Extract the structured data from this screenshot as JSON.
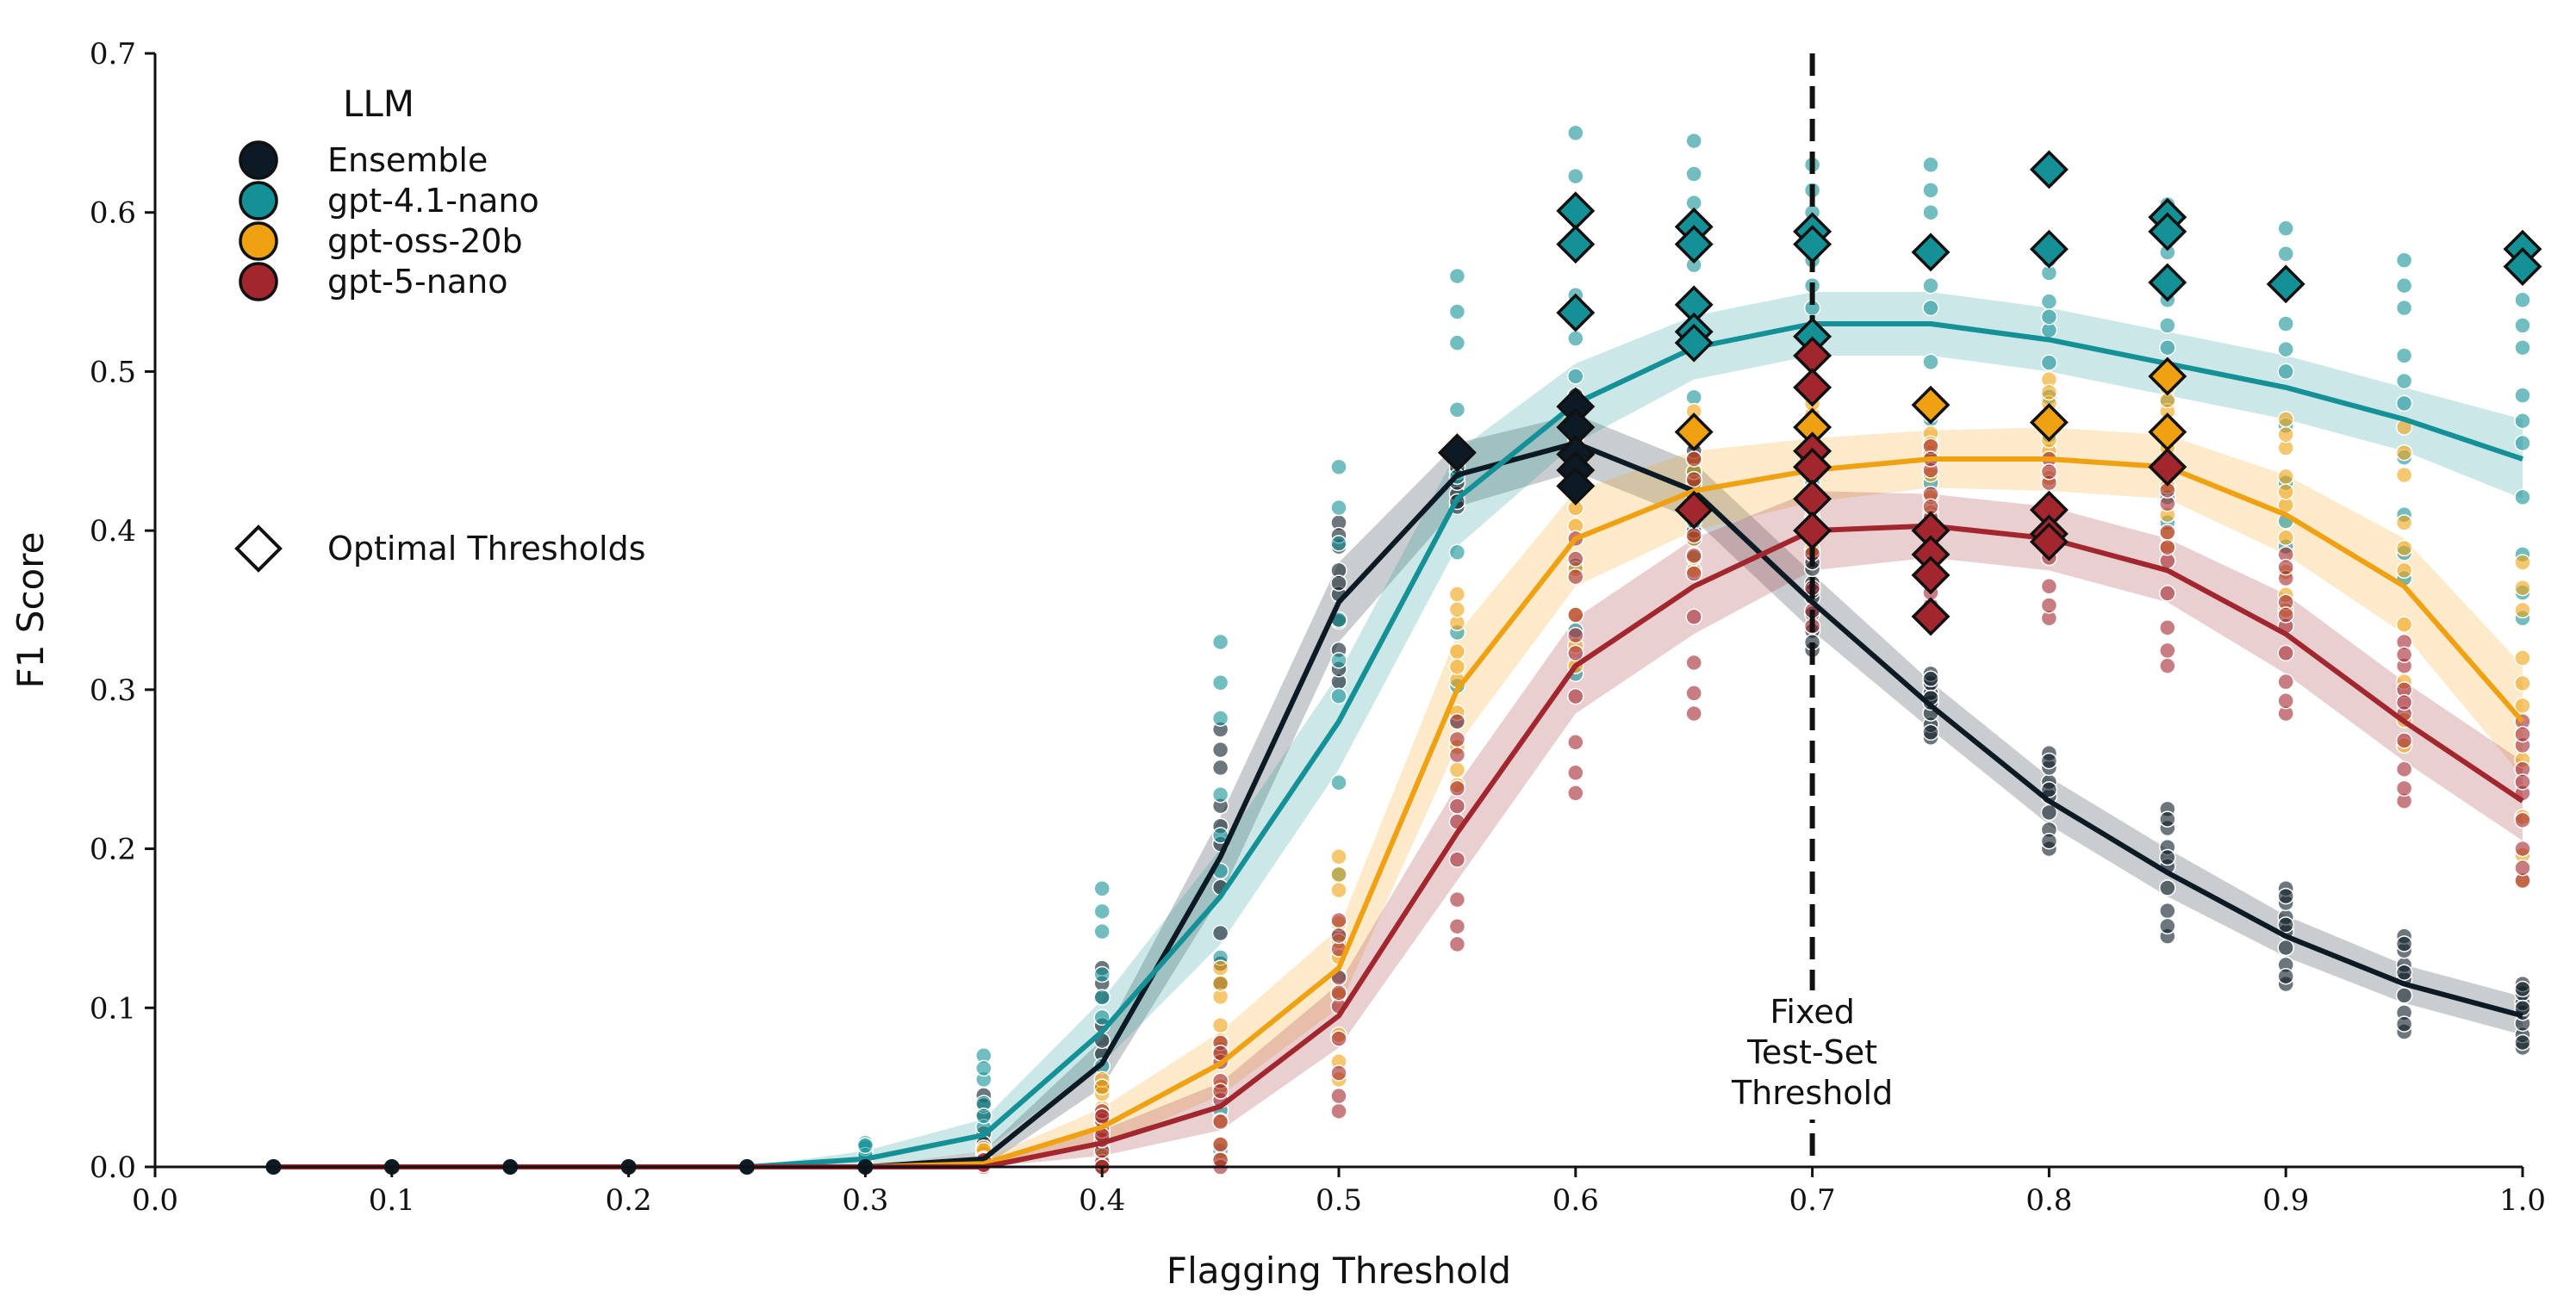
{
  "chart_data": {
    "type": "line",
    "title": "",
    "xlabel": "Flagging Threshold",
    "ylabel": "F1 Score",
    "xlim": [
      0.0,
      1.0
    ],
    "ylim": [
      0.0,
      0.7
    ],
    "xticks": [
      "0.0",
      "0.1",
      "0.2",
      "0.3",
      "0.4",
      "0.5",
      "0.6",
      "0.7",
      "0.8",
      "0.9",
      "1.0"
    ],
    "yticks": [
      "0.0",
      "0.1",
      "0.2",
      "0.3",
      "0.4",
      "0.5",
      "0.6",
      "0.7"
    ],
    "x": [
      0.05,
      0.1,
      0.15,
      0.2,
      0.25,
      0.3,
      0.35,
      0.4,
      0.45,
      0.5,
      0.55,
      0.6,
      0.65,
      0.7,
      0.75,
      0.8,
      0.85,
      0.9,
      0.95,
      1.0
    ],
    "legend": {
      "title": "LLM",
      "position": "top-left",
      "extra_label": "Optimal Thresholds"
    },
    "series": [
      {
        "name": "Ensemble",
        "color": "#0b1a24",
        "values": [
          0,
          0,
          0,
          0,
          0,
          0,
          0.005,
          0.065,
          0.195,
          0.355,
          0.435,
          0.455,
          0.425,
          0.355,
          0.29,
          0.23,
          0.185,
          0.145,
          0.115,
          0.095
        ],
        "band": [
          0,
          0,
          0,
          0,
          0,
          0,
          0.005,
          0.015,
          0.025,
          0.025,
          0.02,
          0.018,
          0.018,
          0.018,
          0.015,
          0.015,
          0.015,
          0.013,
          0.012,
          0.012
        ],
        "scatter_spread": [
          0,
          0,
          0,
          0,
          0,
          0,
          0.04,
          0.06,
          0.08,
          0.05,
          0.02,
          0.03,
          0.03,
          0.03,
          0.02,
          0.03,
          0.04,
          0.03,
          0.03,
          0.02
        ],
        "optimal": [
          [
            0.55,
            0.449
          ],
          [
            0.6,
            0.478
          ],
          [
            0.6,
            0.465
          ],
          [
            0.6,
            0.448
          ],
          [
            0.6,
            0.438
          ],
          [
            0.6,
            0.428
          ]
        ]
      },
      {
        "name": "gpt-4.1-nano",
        "color": "#149196",
        "values": [
          0,
          0,
          0,
          0,
          0,
          0.005,
          0.02,
          0.085,
          0.17,
          0.28,
          0.42,
          0.48,
          0.515,
          0.53,
          0.53,
          0.52,
          0.505,
          0.49,
          0.47,
          0.445
        ],
        "band": [
          0,
          0,
          0,
          0,
          0,
          0.005,
          0.01,
          0.02,
          0.03,
          0.03,
          0.03,
          0.025,
          0.02,
          0.02,
          0.02,
          0.02,
          0.02,
          0.02,
          0.02,
          0.025
        ],
        "scatter_spread": [
          0,
          0,
          0,
          0,
          0,
          0.01,
          0.05,
          0.09,
          0.16,
          0.16,
          0.14,
          0.17,
          0.13,
          0.1,
          0.1,
          0.06,
          0.1,
          0.1,
          0.1,
          0.1
        ],
        "optimal": [
          [
            0.6,
            0.601
          ],
          [
            0.6,
            0.58
          ],
          [
            0.6,
            0.537
          ],
          [
            0.65,
            0.591
          ],
          [
            0.65,
            0.58
          ],
          [
            0.65,
            0.542
          ],
          [
            0.65,
            0.525
          ],
          [
            0.65,
            0.518
          ],
          [
            0.7,
            0.588
          ],
          [
            0.7,
            0.58
          ],
          [
            0.7,
            0.522
          ],
          [
            0.75,
            0.575
          ],
          [
            0.8,
            0.627
          ],
          [
            0.8,
            0.577
          ],
          [
            0.85,
            0.597
          ],
          [
            0.85,
            0.588
          ],
          [
            0.85,
            0.556
          ],
          [
            0.9,
            0.555
          ],
          [
            1.0,
            0.577
          ],
          [
            1.0,
            0.566
          ]
        ]
      },
      {
        "name": "gpt-oss-20b",
        "color": "#f0a112",
        "values": [
          0,
          0,
          0,
          0,
          0,
          0,
          0.002,
          0.025,
          0.065,
          0.125,
          0.3,
          0.395,
          0.425,
          0.438,
          0.445,
          0.445,
          0.44,
          0.41,
          0.365,
          0.28
        ],
        "band": [
          0,
          0,
          0,
          0,
          0,
          0,
          0.003,
          0.012,
          0.02,
          0.025,
          0.035,
          0.03,
          0.025,
          0.02,
          0.018,
          0.02,
          0.02,
          0.025,
          0.03,
          0.035
        ],
        "scatter_spread": [
          0,
          0,
          0,
          0,
          0,
          0,
          0.01,
          0.03,
          0.06,
          0.07,
          0.06,
          0.08,
          0.05,
          0.05,
          0.04,
          0.05,
          0.05,
          0.06,
          0.1,
          0.1
        ],
        "optimal": [
          [
            0.65,
            0.462
          ],
          [
            0.7,
            0.465
          ],
          [
            0.7,
            0.44
          ],
          [
            0.75,
            0.479
          ],
          [
            0.8,
            0.468
          ],
          [
            0.85,
            0.497
          ],
          [
            0.85,
            0.462
          ]
        ]
      },
      {
        "name": "gpt-5-nano",
        "color": "#a1262d",
        "values": [
          0,
          0,
          0,
          0,
          0,
          0,
          0,
          0.015,
          0.038,
          0.095,
          0.21,
          0.315,
          0.365,
          0.4,
          0.403,
          0.395,
          0.375,
          0.335,
          0.28,
          0.23
        ],
        "band": [
          0,
          0,
          0,
          0,
          0,
          0,
          0.003,
          0.008,
          0.015,
          0.02,
          0.03,
          0.03,
          0.03,
          0.025,
          0.02,
          0.02,
          0.02,
          0.025,
          0.025,
          0.025
        ],
        "scatter_spread": [
          0,
          0,
          0,
          0,
          0,
          0,
          0.005,
          0.02,
          0.04,
          0.06,
          0.07,
          0.08,
          0.08,
          0.06,
          0.05,
          0.05,
          0.06,
          0.05,
          0.05,
          0.05
        ],
        "optimal": [
          [
            0.65,
            0.413
          ],
          [
            0.7,
            0.51
          ],
          [
            0.7,
            0.49
          ],
          [
            0.7,
            0.45
          ],
          [
            0.7,
            0.44
          ],
          [
            0.7,
            0.42
          ],
          [
            0.7,
            0.4
          ],
          [
            0.75,
            0.4
          ],
          [
            0.75,
            0.385
          ],
          [
            0.75,
            0.372
          ],
          [
            0.75,
            0.346
          ],
          [
            0.8,
            0.413
          ],
          [
            0.8,
            0.398
          ],
          [
            0.8,
            0.393
          ],
          [
            0.85,
            0.44
          ]
        ]
      }
    ],
    "annotation": {
      "x": 0.7,
      "style": "dashed",
      "lines": [
        "Fixed",
        "Test-Set",
        "Threshold"
      ]
    }
  }
}
